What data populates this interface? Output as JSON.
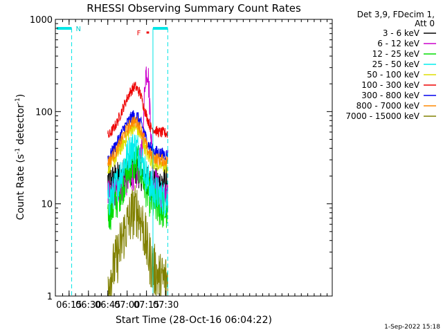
{
  "chart_data": {
    "type": "line",
    "title": "RHESSI Observing Summary Count Rates",
    "xlabel": "Start Time (28-Oct-16 06:04:22)",
    "ylabel_main": "Count Rate (s",
    "ylabel_sup1": "-1",
    "ylabel_mid": " detector",
    "ylabel_sup2": "-1",
    "ylabel_end": ")",
    "yscale": "log",
    "ylim": [
      1,
      1000
    ],
    "xlim_minutes": [
      364.37,
      579.0
    ],
    "x_ticks": [
      {
        "label": "06:15",
        "minutes": 375
      },
      {
        "label": "06:30",
        "minutes": 390
      },
      {
        "label": "06:45",
        "minutes": 405
      },
      {
        "label": "07:00",
        "minutes": 420
      },
      {
        "label": "07:15",
        "minutes": 435
      },
      {
        "label": "07:30",
        "minutes": 450
      }
    ],
    "y_ticks": [
      {
        "label": "1",
        "value": 1
      },
      {
        "label": "10",
        "value": 10
      },
      {
        "label": "100",
        "value": 100
      },
      {
        "label": "1000",
        "value": 1000
      }
    ],
    "legend_header": [
      "Det 3,9, FDecim 1,",
      "Att 0"
    ],
    "legend_position": "right",
    "series": [
      {
        "name": "3 - 6 keV",
        "color": "#000000",
        "anchors": [
          [
            406,
            18
          ],
          [
            412,
            19
          ],
          [
            418,
            21
          ],
          [
            424,
            24
          ],
          [
            428,
            23
          ],
          [
            432,
            20
          ],
          [
            436,
            17
          ],
          [
            440,
            16
          ],
          [
            446,
            17
          ],
          [
            451,
            18
          ]
        ],
        "noise": 0.18
      },
      {
        "name": "6 - 12 keV",
        "color": "#cc00cc",
        "anchors": [
          [
            406,
            12
          ],
          [
            412,
            13.5
          ],
          [
            418,
            17
          ],
          [
            424,
            21
          ],
          [
            428,
            20
          ],
          [
            432,
            40
          ],
          [
            434,
            250
          ],
          [
            436,
            300
          ],
          [
            438,
            90
          ],
          [
            440,
            20
          ],
          [
            446,
            12
          ],
          [
            451,
            11
          ]
        ],
        "noise": 0.18
      },
      {
        "name": "12 - 25 keV",
        "color": "#00dd00",
        "anchors": [
          [
            406,
            8
          ],
          [
            412,
            11
          ],
          [
            418,
            18
          ],
          [
            424,
            27
          ],
          [
            428,
            28
          ],
          [
            432,
            20
          ],
          [
            436,
            13
          ],
          [
            440,
            10
          ],
          [
            446,
            9
          ],
          [
            451,
            8
          ]
        ],
        "noise": 0.22
      },
      {
        "name": "25 - 50 keV",
        "color": "#00eeee",
        "anchors": [
          [
            406,
            11
          ],
          [
            412,
            16
          ],
          [
            418,
            28
          ],
          [
            424,
            42
          ],
          [
            428,
            40
          ],
          [
            432,
            28
          ],
          [
            436,
            18
          ],
          [
            440,
            14
          ],
          [
            446,
            12
          ],
          [
            451,
            11
          ]
        ],
        "noise": 0.2
      },
      {
        "name": "50 - 100 keV",
        "color": "#dddd00",
        "anchors": [
          [
            406,
            25
          ],
          [
            412,
            33
          ],
          [
            418,
            48
          ],
          [
            424,
            68
          ],
          [
            428,
            65
          ],
          [
            432,
            48
          ],
          [
            436,
            33
          ],
          [
            440,
            28
          ],
          [
            446,
            26
          ],
          [
            451,
            25
          ]
        ],
        "noise": 0.08
      },
      {
        "name": "100 - 300 keV",
        "color": "#ee0000",
        "anchors": [
          [
            406,
            55
          ],
          [
            412,
            75
          ],
          [
            418,
            120
          ],
          [
            422,
            160
          ],
          [
            426,
            190
          ],
          [
            430,
            160
          ],
          [
            434,
            100
          ],
          [
            438,
            68
          ],
          [
            444,
            60
          ],
          [
            451,
            58
          ]
        ],
        "noise": 0.06
      },
      {
        "name": "300 - 800 keV",
        "color": "#0000ee",
        "anchors": [
          [
            406,
            32
          ],
          [
            412,
            45
          ],
          [
            418,
            68
          ],
          [
            424,
            90
          ],
          [
            428,
            88
          ],
          [
            432,
            68
          ],
          [
            436,
            45
          ],
          [
            440,
            38
          ],
          [
            446,
            35
          ],
          [
            451,
            34
          ]
        ],
        "noise": 0.07
      },
      {
        "name": "800 - 7000 keV",
        "color": "#ff8800",
        "anchors": [
          [
            406,
            29
          ],
          [
            412,
            38
          ],
          [
            418,
            58
          ],
          [
            424,
            78
          ],
          [
            428,
            76
          ],
          [
            432,
            58
          ],
          [
            436,
            38
          ],
          [
            440,
            32
          ],
          [
            446,
            30
          ],
          [
            451,
            29
          ]
        ],
        "noise": 0.07
      },
      {
        "name": "7000 - 15000 keV",
        "color": "#808000",
        "anchors": [
          [
            406,
            1.5
          ],
          [
            412,
            2.5
          ],
          [
            418,
            5
          ],
          [
            424,
            8
          ],
          [
            428,
            8.5
          ],
          [
            432,
            6
          ],
          [
            436,
            3
          ],
          [
            440,
            2
          ],
          [
            446,
            1.5
          ],
          [
            451,
            1.5
          ]
        ],
        "noise": 0.3
      }
    ],
    "data_start_minutes": 405.0,
    "data_end_minutes": 451.5,
    "annotations": {
      "night_label": "N",
      "night_bar_minutes": [
        364.37,
        377.0
      ],
      "night_dashed_minutes": 377.0,
      "saa_solid_minutes": 440.0,
      "day_bar_minutes": [
        440.0,
        451.5
      ],
      "day_dashed_minutes": 451.5,
      "flare_label": "F",
      "flare_bar_minutes": [
        435.0,
        437.0
      ]
    }
  },
  "footer": {
    "timestamp": "1-Sep-2022 15:18"
  }
}
